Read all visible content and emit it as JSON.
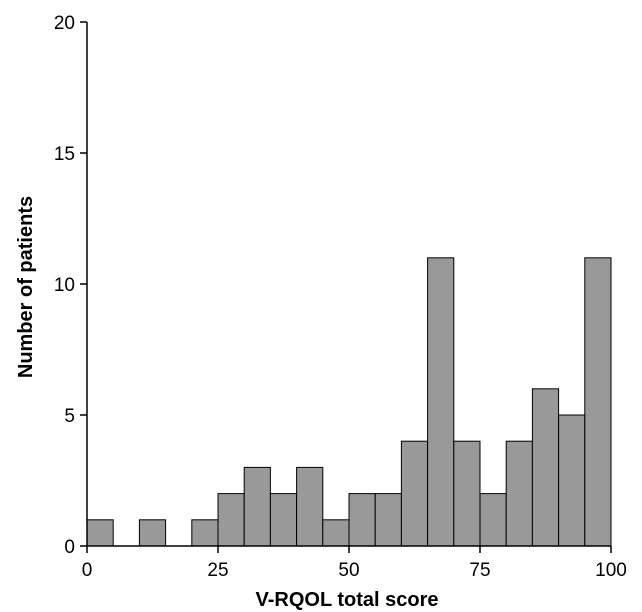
{
  "chart_data": {
    "type": "bar",
    "title": "",
    "xlabel": "V-RQOL total score",
    "ylabel": "Number of patients",
    "xlim": [
      0,
      100
    ],
    "ylim": [
      0,
      20
    ],
    "x_ticks": [
      "0",
      "25",
      "50",
      "75",
      "100"
    ],
    "y_ticks": [
      "0",
      "5",
      "10",
      "15",
      "20"
    ],
    "bin_width": 5,
    "bins": [
      {
        "start": 0,
        "end": 5,
        "count": 1
      },
      {
        "start": 5,
        "end": 10,
        "count": 0
      },
      {
        "start": 10,
        "end": 15,
        "count": 1
      },
      {
        "start": 15,
        "end": 20,
        "count": 0
      },
      {
        "start": 20,
        "end": 25,
        "count": 1
      },
      {
        "start": 25,
        "end": 30,
        "count": 2
      },
      {
        "start": 30,
        "end": 35,
        "count": 3
      },
      {
        "start": 35,
        "end": 40,
        "count": 2
      },
      {
        "start": 40,
        "end": 45,
        "count": 3
      },
      {
        "start": 45,
        "end": 50,
        "count": 1
      },
      {
        "start": 50,
        "end": 55,
        "count": 2
      },
      {
        "start": 55,
        "end": 60,
        "count": 2
      },
      {
        "start": 60,
        "end": 65,
        "count": 4
      },
      {
        "start": 65,
        "end": 70,
        "count": 11
      },
      {
        "start": 70,
        "end": 75,
        "count": 4
      },
      {
        "start": 75,
        "end": 80,
        "count": 2
      },
      {
        "start": 80,
        "end": 85,
        "count": 4
      },
      {
        "start": 85,
        "end": 90,
        "count": 6
      },
      {
        "start": 90,
        "end": 95,
        "count": 5
      },
      {
        "start": 95,
        "end": 100,
        "count": 11
      }
    ],
    "grid": false,
    "colors": {
      "bar_fill": "#999999",
      "bar_stroke": "#000000",
      "axis": "#000000"
    }
  }
}
